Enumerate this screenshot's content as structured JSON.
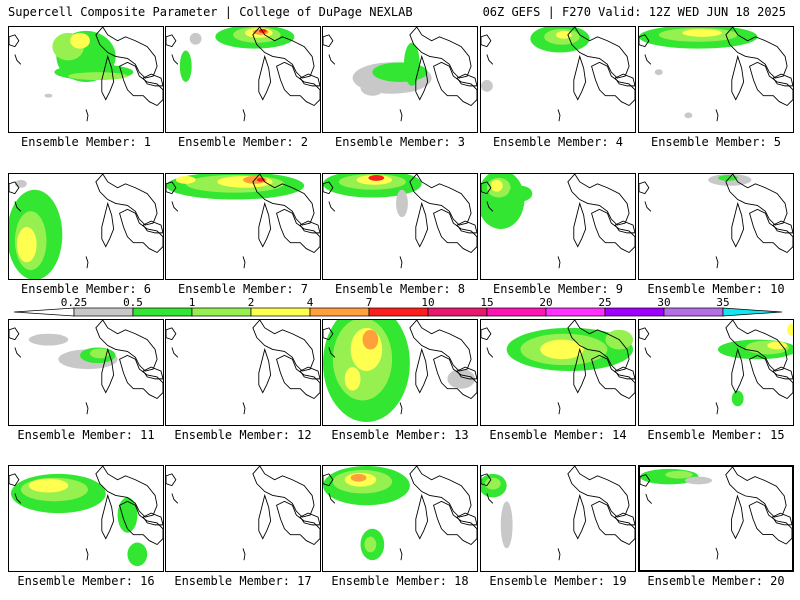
{
  "header": {
    "left": "Supercell Composite Parameter | College of DuPage NEXLAB",
    "right": "06Z GEFS | F270 Valid: 12Z WED JUN 18 2025"
  },
  "colorbar": {
    "labels": [
      "0.25",
      "0.5",
      "1",
      "2",
      "4",
      "7",
      "10",
      "15",
      "20",
      "25",
      "30",
      "35"
    ],
    "colors": [
      "#c8c8c8",
      "#32e632",
      "#96f050",
      "#ffff50",
      "#ffa03c",
      "#ff1e1e",
      "#e6196e",
      "#ff14b4",
      "#ff32ff",
      "#a000ff",
      "#b46ee6",
      "#14e6f0"
    ]
  },
  "members": [
    {
      "caption": "Ensemble Member: 1"
    },
    {
      "caption": "Ensemble Member: 2"
    },
    {
      "caption": "Ensemble Member: 3"
    },
    {
      "caption": "Ensemble Member: 4"
    },
    {
      "caption": "Ensemble Member: 5"
    },
    {
      "caption": "Ensemble Member: 6"
    },
    {
      "caption": "Ensemble Member: 7"
    },
    {
      "caption": "Ensemble Member: 8"
    },
    {
      "caption": "Ensemble Member: 9"
    },
    {
      "caption": "Ensemble Member: 10"
    },
    {
      "caption": "Ensemble Member: 11"
    },
    {
      "caption": "Ensemble Member: 12"
    },
    {
      "caption": "Ensemble Member: 13"
    },
    {
      "caption": "Ensemble Member: 14"
    },
    {
      "caption": "Ensemble Member: 15"
    },
    {
      "caption": "Ensemble Member: 16"
    },
    {
      "caption": "Ensemble Member: 17"
    },
    {
      "caption": "Ensemble Member: 18"
    },
    {
      "caption": "Ensemble Member: 19"
    },
    {
      "caption": "Ensemble Member: 20"
    }
  ]
}
